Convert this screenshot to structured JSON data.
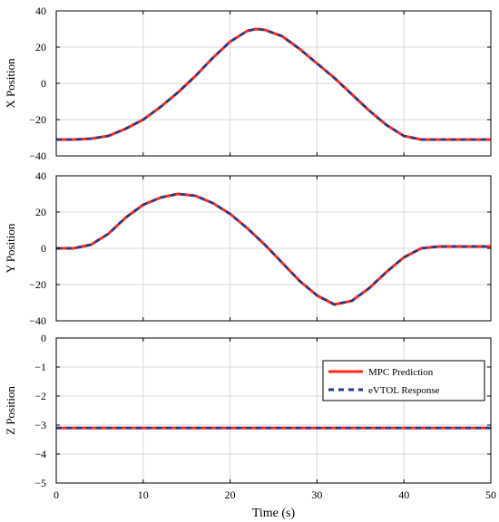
{
  "chart_data": {
    "type": "line",
    "xlabel": "Time (s)",
    "xlim": [
      0,
      50
    ],
    "x_ticks": [
      "0",
      "10",
      "20",
      "30",
      "40",
      "50"
    ],
    "grid": true,
    "legend": {
      "location": "upper-right of bottom subplot",
      "entries": [
        "MPC Prediction",
        "eVTOL Response"
      ]
    },
    "series_styles": [
      {
        "name": "MPC Prediction",
        "color": "#ff2a1a",
        "style": "solid"
      },
      {
        "name": "eVTOL Response",
        "color": "#1f3a93",
        "style": "dashed"
      }
    ],
    "subplots": [
      {
        "ylabel": "X Position",
        "ylim": [
          -40,
          40
        ],
        "y_ticks": [
          "40",
          "20",
          "0",
          "−20",
          "−40"
        ],
        "series": [
          {
            "name": "MPC Prediction",
            "x": [
              0,
              2,
              4,
              6,
              8,
              10,
              12,
              14,
              16,
              18,
              20,
              22,
              23,
              24,
              26,
              28,
              30,
              32,
              34,
              36,
              38,
              40,
              42,
              44,
              46,
              48,
              50
            ],
            "y": [
              -31,
              -31,
              -30.5,
              -29,
              -25,
              -20,
              -13,
              -5,
              4,
              14,
              23,
              29,
              30,
              29.5,
              26,
              19,
              11,
              3,
              -6,
              -15,
              -23,
              -29,
              -31,
              -31,
              -31,
              -31,
              -31
            ]
          },
          {
            "name": "eVTOL Response",
            "x": [
              0,
              2,
              4,
              6,
              8,
              10,
              12,
              14,
              16,
              18,
              20,
              22,
              23,
              24,
              26,
              28,
              30,
              32,
              34,
              36,
              38,
              40,
              42,
              44,
              46,
              48,
              50
            ],
            "y": [
              -31,
              -31,
              -30.5,
              -29,
              -25,
              -20,
              -13,
              -5,
              4,
              14,
              23,
              29,
              30,
              29.5,
              26,
              19,
              11,
              3,
              -6,
              -15,
              -23,
              -29,
              -31,
              -31,
              -31,
              -31,
              -31
            ]
          }
        ]
      },
      {
        "ylabel": "Y Position",
        "ylim": [
          -40,
          40
        ],
        "y_ticks": [
          "40",
          "20",
          "0",
          "−20",
          "−40"
        ],
        "series": [
          {
            "name": "MPC Prediction",
            "x": [
              0,
              2,
              4,
              6,
              8,
              10,
              12,
              14,
              16,
              18,
              20,
              22,
              24,
              26,
              28,
              30,
              32,
              34,
              36,
              38,
              40,
              42,
              44,
              46,
              48,
              50
            ],
            "y": [
              0,
              0,
              2,
              8,
              17,
              24,
              28,
              30,
              29,
              25,
              19,
              11,
              2,
              -8,
              -18,
              -26,
              -31,
              -29,
              -22,
              -13,
              -5,
              0,
              1,
              1,
              1,
              1
            ]
          },
          {
            "name": "eVTOL Response",
            "x": [
              0,
              2,
              4,
              6,
              8,
              10,
              12,
              14,
              16,
              18,
              20,
              22,
              24,
              26,
              28,
              30,
              32,
              34,
              36,
              38,
              40,
              42,
              44,
              46,
              48,
              50
            ],
            "y": [
              0,
              0,
              2,
              8,
              17,
              24,
              28,
              30,
              29,
              25,
              19,
              11,
              2,
              -8,
              -18,
              -26,
              -31,
              -29,
              -22,
              -13,
              -5,
              0,
              1,
              1,
              1,
              1
            ]
          }
        ]
      },
      {
        "ylabel": "Z Position",
        "ylim": [
          -5,
          0
        ],
        "y_ticks": [
          "0",
          "−1",
          "−2",
          "−3",
          "−4",
          "−5"
        ],
        "series": [
          {
            "name": "MPC Prediction",
            "x": [
              0,
              50
            ],
            "y": [
              -3.1,
              -3.1
            ]
          },
          {
            "name": "eVTOL Response",
            "x": [
              0,
              50
            ],
            "y": [
              -3.1,
              -3.1
            ]
          }
        ]
      }
    ]
  }
}
